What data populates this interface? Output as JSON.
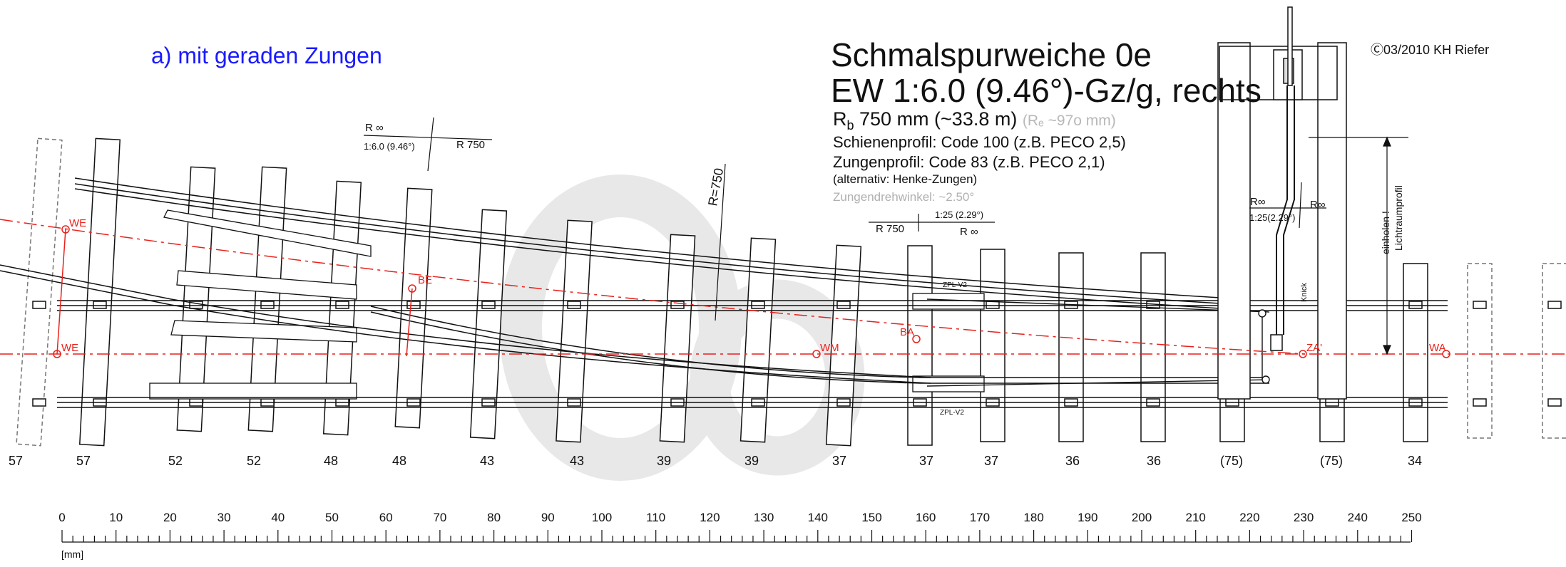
{
  "subtitle": "a) mit geraden Zungen",
  "title_line1": "Schmalspurweiche 0e",
  "title_line2": "EW 1:6.0 (9.46°)-Gz/g, rechts",
  "spec": {
    "radius_symbol": "R",
    "radius_sub": "b",
    "radius_text": " 750 mm (~33.8 m) ",
    "radius_gray": "(Rₑ ~97o  mm)",
    "rail_profile": "Schienenprofil: Code 100 (z.B. PECO 2,5)",
    "tongue_profile": "Zungenprofil:  Code 83 (z.B. PECO 2,1)",
    "alternative": "(alternativ: Henke-Zungen)",
    "tongue_angle": "Zungendrehwinkel: ~2.50°"
  },
  "copyright": "Ⓒ03/2010 KH Riefer",
  "annotations": {
    "r_inf_1": "R ∞",
    "ratio_1": "1:6.0  (9.46°)",
    "r750_1": "R  750",
    "r750_vertical": "R=750",
    "ratio_2": "1:25  (2.29°)",
    "r750_2": "R  750",
    "r_inf_2": "R ∞",
    "r_inf_3": "R∞",
    "ratio_3": "1:25(2.29°)",
    "r_inf_4": "R∞",
    "knick": "Knick",
    "einholen": "einholen !",
    "lichtraumprofil": "Lichtraumprofil",
    "zpl_top": "ZPL-V2",
    "zpl_bottom": "ZPL-V2"
  },
  "points": {
    "we_top": "WE",
    "we_bottom": "WE",
    "be": "BE",
    "wm": "WM",
    "ba": "BA",
    "za": "ZA'",
    "wa": "WA"
  },
  "sleeper_labels": [
    "57",
    "57",
    "52",
    "52",
    "48",
    "48",
    "43",
    "43",
    "39",
    "39",
    "37",
    "37",
    "37",
    "36",
    "36",
    "(75)",
    "(75)",
    "34"
  ],
  "ruler": {
    "ticks": [
      "0",
      "10",
      "20",
      "30",
      "40",
      "50",
      "60",
      "70",
      "80",
      "90",
      "100",
      "110",
      "120",
      "130",
      "140",
      "150",
      "160",
      "170",
      "180",
      "190",
      "200",
      "210",
      "220",
      "230",
      "240",
      "250"
    ],
    "unit": "[mm]"
  },
  "colors": {
    "lines": "#111111",
    "axis": "#e8211b",
    "subtitle": "#1a1aff",
    "watermark": "#e6e6e6"
  }
}
